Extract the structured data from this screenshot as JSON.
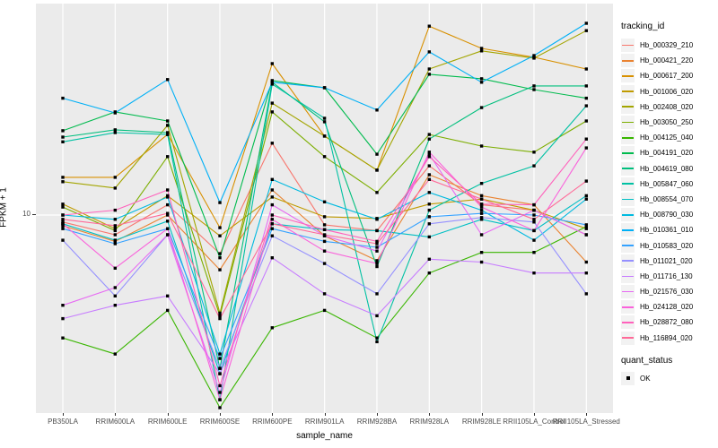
{
  "chart_data": {
    "type": "line",
    "x": {
      "label": "sample_name",
      "categories": [
        "PB350LA",
        "RRIM600LA",
        "RRIM600LE",
        "RRIM600SE",
        "RRIM600PE",
        "RRIM901LA",
        "RRIM928BA",
        "RRIM928LA",
        "RRIM928LE",
        "RRII105LA_Control",
        "RRII105LA_Stressed"
      ]
    },
    "y": {
      "label": "FPKM + 1",
      "scale": "log10",
      "tick_labels": [
        "10"
      ],
      "tick_values": [
        10
      ],
      "range": [
        0.94,
        125
      ]
    },
    "grid": {
      "panel_background": "#EBEBEB",
      "gridline_color": "#FFFFFF"
    },
    "marker": {
      "shape": "square",
      "color": "#000000"
    },
    "legend": {
      "title": "tracking_id",
      "position": "right"
    },
    "quant_legend": {
      "title": "quant_status",
      "items": [
        {
          "label": "OK",
          "marker": "black-square"
        }
      ]
    },
    "series": [
      {
        "name": "Hb_000329_210",
        "color": "#F8766D",
        "values": [
          9.2,
          7.9,
          11.3,
          6.3,
          23.6,
          8.9,
          8.3,
          18.0,
          11.3,
          10.6,
          7.9
        ]
      },
      {
        "name": "Hb_000421_220",
        "color": "#EA8331",
        "values": [
          8.8,
          7.3,
          10.0,
          5.2,
          13.5,
          7.8,
          5.8,
          16.2,
          12.6,
          11.3,
          5.7
        ]
      },
      {
        "name": "Hb_000617_200",
        "color": "#D89000",
        "values": [
          15.7,
          15.7,
          26.2,
          8.6,
          61.1,
          25.7,
          17.1,
          95.6,
          73.3,
          65.9,
          57.3
        ]
      },
      {
        "name": "Hb_001006_020",
        "color": "#C09B00",
        "values": [
          11.4,
          8.5,
          12.6,
          7.8,
          12.4,
          9.8,
          9.6,
          11.4,
          12.1,
          10.6,
          8.5
        ]
      },
      {
        "name": "Hb_002408_020",
        "color": "#A3A500",
        "values": [
          14.9,
          13.8,
          29.2,
          3.1,
          38.1,
          25.7,
          17.1,
          57.3,
          71.1,
          65.2,
          90.6
        ]
      },
      {
        "name": "Hb_003050_250",
        "color": "#7CAE00",
        "values": [
          11.0,
          8.3,
          20.1,
          3.0,
          34.3,
          20.1,
          13.1,
          26.2,
          22.8,
          21.2,
          30.8
        ]
      },
      {
        "name": "Hb_004125_040",
        "color": "#39B600",
        "values": [
          2.3,
          1.9,
          3.2,
          1.0,
          2.6,
          3.2,
          2.3,
          5.0,
          6.4,
          6.4,
          8.7
        ]
      },
      {
        "name": "Hb_004191_020",
        "color": "#00BB4E",
        "values": [
          27.4,
          34.3,
          30.8,
          6.0,
          49.9,
          45.8,
          20.7,
          53.8,
          51.0,
          44.8,
          40.4
        ]
      },
      {
        "name": "Hb_004619_080",
        "color": "#00BF7D",
        "values": [
          25.4,
          27.7,
          26.8,
          1.6,
          48.9,
          30.5,
          5.4,
          24.8,
          36.1,
          46.8,
          46.8
        ]
      },
      {
        "name": "Hb_005847_060",
        "color": "#00C1A3",
        "values": [
          24.0,
          26.8,
          26.2,
          1.1,
          47.8,
          31.8,
          2.2,
          10.6,
          14.6,
          18.0,
          36.9
        ]
      },
      {
        "name": "Hb_008554_070",
        "color": "#00BFC4",
        "values": [
          9.0,
          7.4,
          9.3,
          1.5,
          9.0,
          8.4,
          8.3,
          7.7,
          9.5,
          8.3,
          12.6
        ]
      },
      {
        "name": "Hb_008790_030",
        "color": "#00BAE0",
        "values": [
          10.0,
          9.5,
          12.4,
          1.9,
          15.3,
          11.7,
          9.5,
          13.1,
          10.6,
          7.4,
          12.1
        ]
      },
      {
        "name": "Hb_010361_010",
        "color": "#00B0F6",
        "values": [
          40.4,
          33.9,
          50.5,
          11.6,
          48.9,
          45.8,
          35.1,
          70.3,
          48.9,
          67.3,
          98.9
        ]
      },
      {
        "name": "Hb_010583_020",
        "color": "#35A2FF",
        "values": [
          8.5,
          7.1,
          8.5,
          1.8,
          8.5,
          7.3,
          6.8,
          9.8,
          10.2,
          10.0,
          8.9
        ]
      },
      {
        "name": "Hb_011021_020",
        "color": "#9590FF",
        "values": [
          7.4,
          3.8,
          7.9,
          1.6,
          7.8,
          5.6,
          3.9,
          9.0,
          9.7,
          9.2,
          3.9
        ]
      },
      {
        "name": "Hb_011716_130",
        "color": "#C77CFF",
        "values": [
          2.9,
          3.4,
          3.8,
          1.5,
          6.0,
          3.9,
          3.0,
          5.9,
          5.7,
          5.0,
          5.0
        ]
      },
      {
        "name": "Hb_021576_030",
        "color": "#E76BF3",
        "values": [
          3.4,
          4.2,
          7.9,
          1.2,
          11.3,
          7.8,
          6.5,
          20.7,
          7.9,
          10.6,
          7.9
        ]
      },
      {
        "name": "Hb_024128_020",
        "color": "#FA62DB",
        "values": [
          9.0,
          5.3,
          8.5,
          1.1,
          9.5,
          6.5,
          5.6,
          21.2,
          11.0,
          8.3,
          22.3
        ]
      },
      {
        "name": "Hb_028872_080",
        "color": "#FF62BC",
        "values": [
          10.0,
          10.6,
          13.5,
          1.3,
          10.0,
          8.4,
          7.3,
          20.1,
          11.4,
          11.3,
          24.8
        ]
      },
      {
        "name": "Hb_116894_020",
        "color": "#FF6A98",
        "values": [
          9.5,
          8.8,
          10.2,
          2.9,
          9.0,
          7.9,
          7.1,
          15.3,
          12.1,
          9.5,
          15.0
        ]
      }
    ]
  }
}
